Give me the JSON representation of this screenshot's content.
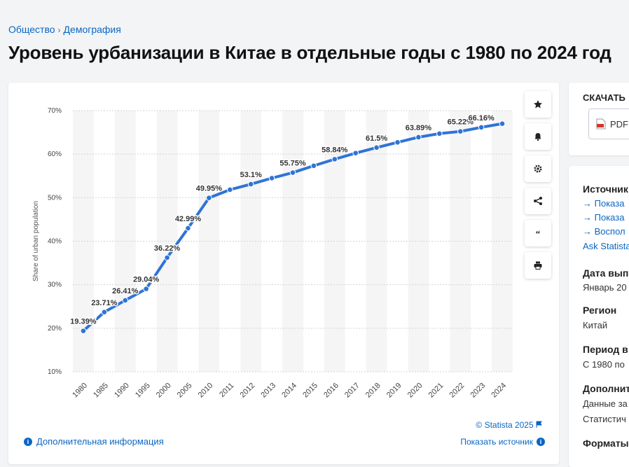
{
  "breadcrumb": {
    "items": [
      "Общество",
      "Демография"
    ],
    "separator": "›"
  },
  "title": "Уровень урбанизации в Китае в отдельные годы с 1980 по 2024 год",
  "chart_data": {
    "type": "line",
    "title": "Уровень урбанизации в Китае в отдельные годы с 1980 по 2024 год",
    "xlabel": "",
    "ylabel": "Share of urban population",
    "categories": [
      "1980",
      "1985",
      "1990",
      "1995",
      "2000",
      "2005",
      "2010",
      "2011",
      "2012",
      "2013",
      "2014",
      "2015",
      "2016",
      "2017",
      "2018",
      "2019",
      "2020",
      "2021",
      "2022",
      "2023",
      "2024"
    ],
    "values": [
      19.39,
      23.71,
      26.41,
      29.04,
      36.22,
      42.99,
      49.95,
      51.83,
      53.1,
      54.49,
      55.75,
      57.33,
      58.84,
      60.24,
      61.5,
      62.71,
      63.89,
      64.72,
      65.22,
      66.16,
      67.0
    ],
    "labels": [
      "19.39%",
      "23.71%",
      "26.41%",
      "29.04%",
      "36.22%",
      "42.99%",
      "49.95%",
      "",
      "53.1%",
      "",
      "55.75%",
      "",
      "58.84%",
      "",
      "61.5%",
      "",
      "63.89%",
      "",
      "65.22%",
      "66.16%",
      ""
    ],
    "yticks": [
      10,
      20,
      30,
      40,
      50,
      60,
      70
    ],
    "ytick_labels": [
      "10%",
      "20%",
      "30%",
      "40%",
      "50%",
      "60%",
      "70%"
    ],
    "ylim": [
      10,
      70
    ],
    "color": "#2f74d6",
    "grid": true
  },
  "actions": [
    {
      "name": "favorite-star-icon",
      "glyph": "★"
    },
    {
      "name": "notification-bell-icon",
      "glyph": "bell"
    },
    {
      "name": "settings-gear-icon",
      "glyph": "gear"
    },
    {
      "name": "share-icon",
      "glyph": "share"
    },
    {
      "name": "quote-icon",
      "glyph": "❝"
    },
    {
      "name": "print-icon",
      "glyph": "print"
    }
  ],
  "footer": {
    "copyright": "© Statista 2025",
    "more_info": "Дополнительная информация",
    "show_source": "Показать источник"
  },
  "download": {
    "title": "СКАЧАТЬ",
    "pdf_label": "PDF"
  },
  "sidebar": {
    "source_title": "Источник",
    "source_links": [
      "Показа",
      "Показа",
      "Воспол"
    ],
    "ask": "Ask Statista",
    "release_title": "Дата вып",
    "release_value": "Январь 20",
    "region_title": "Регион",
    "region_value": "Китай",
    "period_title": "Период в",
    "period_value": "С 1980 по",
    "extra_title": "Дополнит",
    "extra_line1": "Данные за",
    "extra_line2": "Статистич",
    "formats_title": "Форматы"
  }
}
